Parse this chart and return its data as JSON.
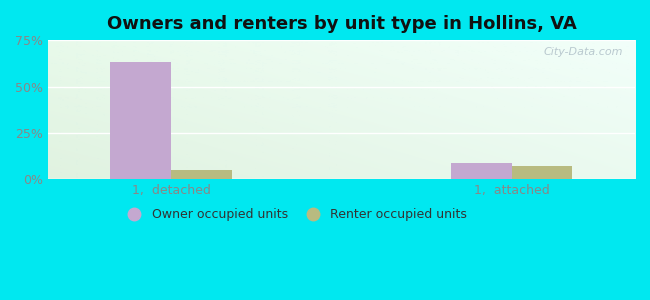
{
  "title": "Owners and renters by unit type in Hollins, VA",
  "categories": [
    "1,  detached",
    "1,  attached"
  ],
  "owner_values": [
    63,
    9
  ],
  "renter_values": [
    5,
    7
  ],
  "owner_color": "#c4a8d0",
  "renter_color": "#b8bb80",
  "ylim": [
    0,
    75
  ],
  "yticks": [
    0,
    25,
    50,
    75
  ],
  "ytick_labels": [
    "0%",
    "25%",
    "50%",
    "75%"
  ],
  "legend_owner": "Owner occupied units",
  "legend_renter": "Renter occupied units",
  "bar_width": 0.32,
  "outer_color": "#00e8f0",
  "watermark": "City-Data.com",
  "group_positions": [
    1.0,
    2.8
  ],
  "xlim": [
    0.35,
    3.45
  ],
  "bg_colors": [
    "#e8f5e8",
    "#f5fffa",
    "#eefafa",
    "#f8ffff"
  ],
  "title_fontsize": 13
}
